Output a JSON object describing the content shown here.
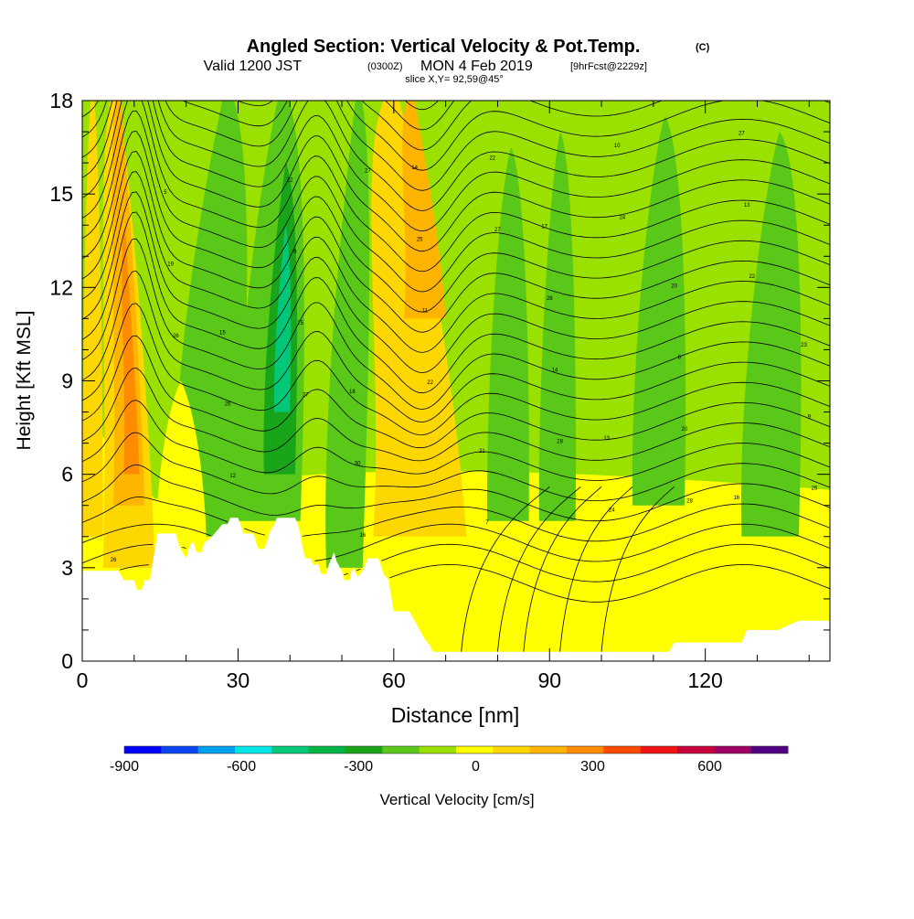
{
  "chart_data": {
    "type": "heatmap",
    "title": {
      "main": "Angled Section: Vertical Velocity & Pot.Temp.",
      "main_unit": "(C)",
      "valid_prefix": "Valid 1200 JST",
      "valid_utc": "(0300Z)",
      "valid_date": "MON 4 Feb 2019",
      "forecast": "[9hrFcst@2229z]",
      "slice": "slice X,Y= 92,59@45°"
    },
    "xlabel": "Distance [nm]",
    "ylabel": "Height [Kft MSL]",
    "xlim": [
      0,
      144
    ],
    "ylim": [
      0,
      18
    ],
    "xticks": [
      "0",
      "30",
      "60",
      "90",
      "120"
    ],
    "xtick_values": [
      0,
      30,
      60,
      90,
      120
    ],
    "yticks": [
      "0",
      "3",
      "6",
      "9",
      "12",
      "15",
      "18"
    ],
    "ytick_values": [
      0,
      3,
      6,
      9,
      12,
      15,
      18
    ],
    "colorbar": {
      "label": "Vertical Velocity [cm/s]",
      "ticks": [
        "-900",
        "-600",
        "-300",
        "0",
        "300",
        "600"
      ],
      "tick_values": [
        -900,
        -600,
        -300,
        0,
        300,
        600
      ],
      "range": [
        -900,
        800
      ],
      "step": 100,
      "colors": [
        "#0000ff",
        "#0a46f5",
        "#00a0f0",
        "#00e6e6",
        "#00c878",
        "#00b446",
        "#19a519",
        "#5ac819",
        "#9be100",
        "#ffff00",
        "#ffd700",
        "#ffb400",
        "#ff8c00",
        "#ff4b00",
        "#f01414",
        "#c8003c",
        "#a00064",
        "#500082"
      ]
    },
    "updraft_columns_nm": [
      8,
      12,
      45,
      66
    ],
    "downdraft_columns_nm": [
      22,
      36,
      52,
      83,
      91,
      110,
      133
    ],
    "contour_labels": [
      "26",
      "27",
      "27",
      "28",
      "26",
      "27",
      "28",
      "22",
      "24",
      "22",
      "24",
      "26",
      "25",
      "22",
      "20",
      "19",
      "16",
      "14",
      "13",
      "12",
      "11",
      "10",
      "9",
      "8",
      "7",
      "6",
      "5",
      "30",
      "28",
      "27",
      "26",
      "25",
      "24",
      "23",
      "22",
      "21",
      "20",
      "19",
      "18",
      "17",
      "16",
      "15",
      "14",
      "13"
    ]
  }
}
